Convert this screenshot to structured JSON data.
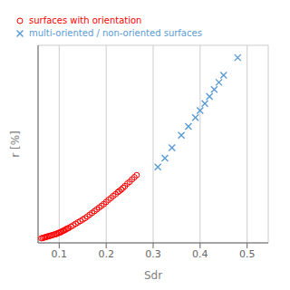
{
  "chart_data": {
    "type": "scatter",
    "xlabel": "Sdr",
    "ylabel": "r [%]",
    "xlim": [
      0.055,
      0.545
    ],
    "ylim": [
      -1,
      55
    ],
    "xticks": [
      0.1,
      0.2,
      0.3,
      0.4,
      0.5
    ],
    "yticks": [
      0,
      10,
      20,
      30,
      40,
      50
    ],
    "grid": true,
    "legend": "upper left",
    "tick_labels": "x",
    "series": [
      {
        "name": "surfaces with orientation",
        "color": "red",
        "marker": "circle",
        "x": [
          0.062,
          0.065,
          0.068,
          0.07,
          0.073,
          0.075,
          0.078,
          0.08,
          0.083,
          0.086,
          0.09,
          0.093,
          0.095,
          0.098,
          0.1,
          0.103,
          0.105,
          0.108,
          0.11,
          0.113,
          0.115,
          0.118,
          0.12,
          0.125,
          0.13,
          0.135,
          0.14,
          0.145,
          0.15,
          0.155,
          0.16,
          0.165,
          0.17,
          0.175,
          0.18,
          0.185,
          0.19,
          0.195,
          0.2,
          0.205,
          0.21,
          0.215,
          0.22,
          0.225,
          0.228,
          0.232,
          0.236,
          0.24,
          0.245,
          0.25,
          0.255,
          0.26,
          0.265
        ],
        "values": [
          0.3,
          0.4,
          0.5,
          0.6,
          0.7,
          0.8,
          0.9,
          1.0,
          1.1,
          1.2,
          1.4,
          1.5,
          1.6,
          1.8,
          1.9,
          2.0,
          2.2,
          2.4,
          2.5,
          2.7,
          2.9,
          3.1,
          3.2,
          3.6,
          4.0,
          4.4,
          4.8,
          5.2,
          5.6,
          6.0,
          6.5,
          7.0,
          7.5,
          8.0,
          8.5,
          9.0,
          9.5,
          10.0,
          10.6,
          11.2,
          11.7,
          12.3,
          12.8,
          13.4,
          13.7,
          14.1,
          14.6,
          15.1,
          15.8,
          16.3,
          17.0,
          17.6,
          18.2
        ]
      },
      {
        "name": "multi-oriented / non-oriented surfaces",
        "color": "#5b9bd5",
        "marker": "x",
        "x": [
          0.31,
          0.325,
          0.34,
          0.36,
          0.375,
          0.39,
          0.4,
          0.41,
          0.42,
          0.43,
          0.44,
          0.45,
          0.48
        ],
        "values": [
          20.5,
          23.0,
          26.0,
          29.5,
          32.0,
          34.5,
          36.5,
          38.5,
          40.5,
          42.5,
          44.5,
          46.5,
          51.5
        ]
      }
    ]
  }
}
